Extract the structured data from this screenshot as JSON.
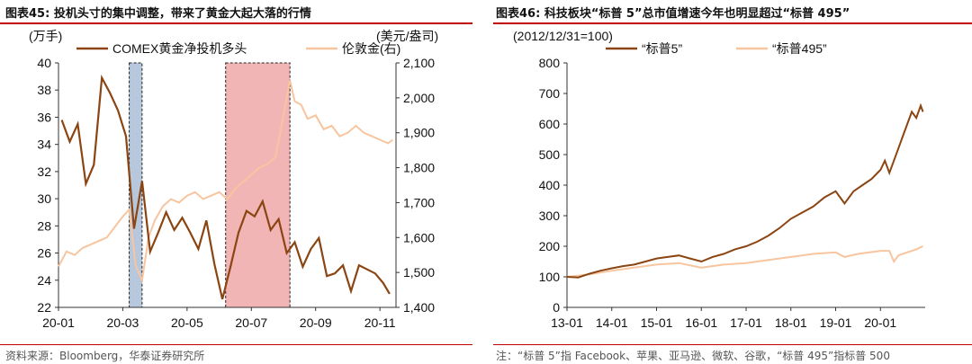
{
  "left_panel": {
    "title_prefix": "图表45:",
    "title": "投机头寸的集中调整，带来了黄金大起大落的行情",
    "source": "资料来源：Bloomberg，华泰证券研究所"
  },
  "right_panel": {
    "title_prefix": "图表46:",
    "title": "科技板块“标普 5”总市值增速今年也明显超过“标普 495”",
    "note": "注：“标普 5”指 Facebook、苹果、亚马逊、微软、谷歌，“标普 495”指标普 500"
  },
  "colors": {
    "brown": "#8B4513",
    "peach": "#F7C59F",
    "blue_band": "#B8C8DC",
    "red_band": "#F2B5B5",
    "rule": "#c00000"
  },
  "chart_data": [
    {
      "type": "line",
      "left_unit": "(万手)",
      "right_unit": "(美元/盎司)",
      "xticks": [
        "20-01",
        "20-03",
        "20-05",
        "20-07",
        "20-09",
        "20-11"
      ],
      "ylim_left": [
        22,
        40
      ],
      "yticks_left": [
        "22",
        "24",
        "26",
        "28",
        "30",
        "32",
        "34",
        "36",
        "38",
        "40"
      ],
      "ylim_right": [
        1400,
        2100
      ],
      "yticks_right": [
        "1,400",
        "1,500",
        "1,600",
        "1,700",
        "1,800",
        "1,900",
        "2,000",
        "2,100"
      ],
      "x_range": [
        0,
        10.5
      ],
      "highlight_bands": [
        {
          "x_from": 2.2,
          "x_to": 2.6,
          "color": "blue"
        },
        {
          "x_from": 5.2,
          "x_to": 7.2,
          "color": "red"
        }
      ],
      "series": [
        {
          "name": "COMEX黄金净投机多头",
          "axis": "left",
          "color": "#8B4513",
          "x": [
            0.1,
            0.35,
            0.6,
            0.85,
            1.1,
            1.35,
            1.6,
            1.85,
            2.1,
            2.35,
            2.6,
            2.85,
            3.1,
            3.35,
            3.6,
            3.85,
            4.1,
            4.35,
            4.6,
            4.85,
            5.1,
            5.35,
            5.6,
            5.85,
            6.1,
            6.35,
            6.6,
            6.85,
            7.1,
            7.35,
            7.6,
            7.85,
            8.1,
            8.35,
            8.6,
            8.85,
            9.1,
            9.35,
            9.6,
            9.85,
            10.1,
            10.3
          ],
          "y": [
            35.8,
            34.2,
            35.5,
            31.1,
            32.5,
            38.9,
            37.8,
            36.5,
            34.6,
            27.8,
            31.3,
            26.1,
            27.5,
            29.0,
            27.7,
            28.6,
            27.5,
            26.3,
            28.4,
            25.2,
            22.6,
            25.0,
            27.5,
            29.1,
            28.7,
            29.8,
            27.7,
            28.5,
            26.0,
            26.8,
            25.0,
            26.3,
            27.1,
            24.3,
            24.5,
            25.1,
            23.2,
            25.1,
            24.8,
            24.5,
            23.8,
            23.0
          ]
        },
        {
          "name": "伦敦金(右)",
          "axis": "right",
          "color": "#F7C59F",
          "x": [
            0.0,
            0.25,
            0.5,
            0.75,
            1.0,
            1.25,
            1.5,
            1.75,
            2.0,
            2.2,
            2.4,
            2.6,
            2.8,
            3.0,
            3.25,
            3.5,
            3.75,
            4.0,
            4.25,
            4.5,
            4.75,
            5.0,
            5.25,
            5.5,
            5.75,
            6.0,
            6.25,
            6.5,
            6.75,
            7.0,
            7.2,
            7.35,
            7.55,
            7.75,
            8.0,
            8.25,
            8.5,
            8.75,
            9.0,
            9.25,
            9.5,
            9.75,
            10.0,
            10.25,
            10.4
          ],
          "y": [
            1517,
            1560,
            1550,
            1570,
            1580,
            1590,
            1600,
            1630,
            1660,
            1680,
            1520,
            1478,
            1600,
            1650,
            1690,
            1710,
            1700,
            1720,
            1730,
            1710,
            1720,
            1730,
            1710,
            1740,
            1760,
            1780,
            1800,
            1810,
            1830,
            1950,
            2050,
            1990,
            1980,
            1940,
            1950,
            1910,
            1920,
            1890,
            1900,
            1920,
            1900,
            1890,
            1880,
            1870,
            1880
          ]
        }
      ]
    },
    {
      "type": "line",
      "subtitle": "(2012/12/31=100)",
      "xticks": [
        "13-01",
        "14-01",
        "15-01",
        "16-01",
        "17-01",
        "18-01",
        "19-01",
        "20-01"
      ],
      "ylim": [
        0,
        800
      ],
      "yticks": [
        "0",
        "100",
        "200",
        "300",
        "400",
        "500",
        "600",
        "700",
        "800"
      ],
      "x_range": [
        0,
        8.0
      ],
      "series": [
        {
          "name": "“标普5”",
          "color": "#8B4513",
          "x": [
            0.0,
            0.25,
            0.5,
            0.75,
            1.0,
            1.25,
            1.5,
            1.75,
            2.0,
            2.25,
            2.5,
            2.75,
            3.0,
            3.25,
            3.5,
            3.75,
            4.0,
            4.25,
            4.5,
            4.75,
            5.0,
            5.25,
            5.5,
            5.75,
            6.0,
            6.2,
            6.4,
            6.6,
            6.8,
            7.0,
            7.1,
            7.2,
            7.3,
            7.4,
            7.5,
            7.6,
            7.7,
            7.8,
            7.9,
            7.95
          ],
          "y": [
            100,
            98,
            110,
            120,
            128,
            135,
            140,
            150,
            160,
            165,
            170,
            160,
            150,
            165,
            175,
            190,
            200,
            215,
            235,
            260,
            290,
            310,
            330,
            360,
            380,
            340,
            380,
            400,
            420,
            450,
            480,
            440,
            480,
            520,
            560,
            600,
            640,
            620,
            660,
            640
          ]
        },
        {
          "name": "“标普495”",
          "color": "#F7C59F",
          "x": [
            0.0,
            0.5,
            1.0,
            1.5,
            2.0,
            2.5,
            3.0,
            3.5,
            4.0,
            4.5,
            5.0,
            5.5,
            6.0,
            6.2,
            6.5,
            7.0,
            7.2,
            7.3,
            7.4,
            7.6,
            7.8,
            7.95
          ],
          "y": [
            100,
            108,
            120,
            130,
            140,
            145,
            130,
            140,
            145,
            155,
            165,
            175,
            180,
            165,
            175,
            185,
            185,
            150,
            170,
            180,
            190,
            200
          ]
        }
      ]
    }
  ]
}
